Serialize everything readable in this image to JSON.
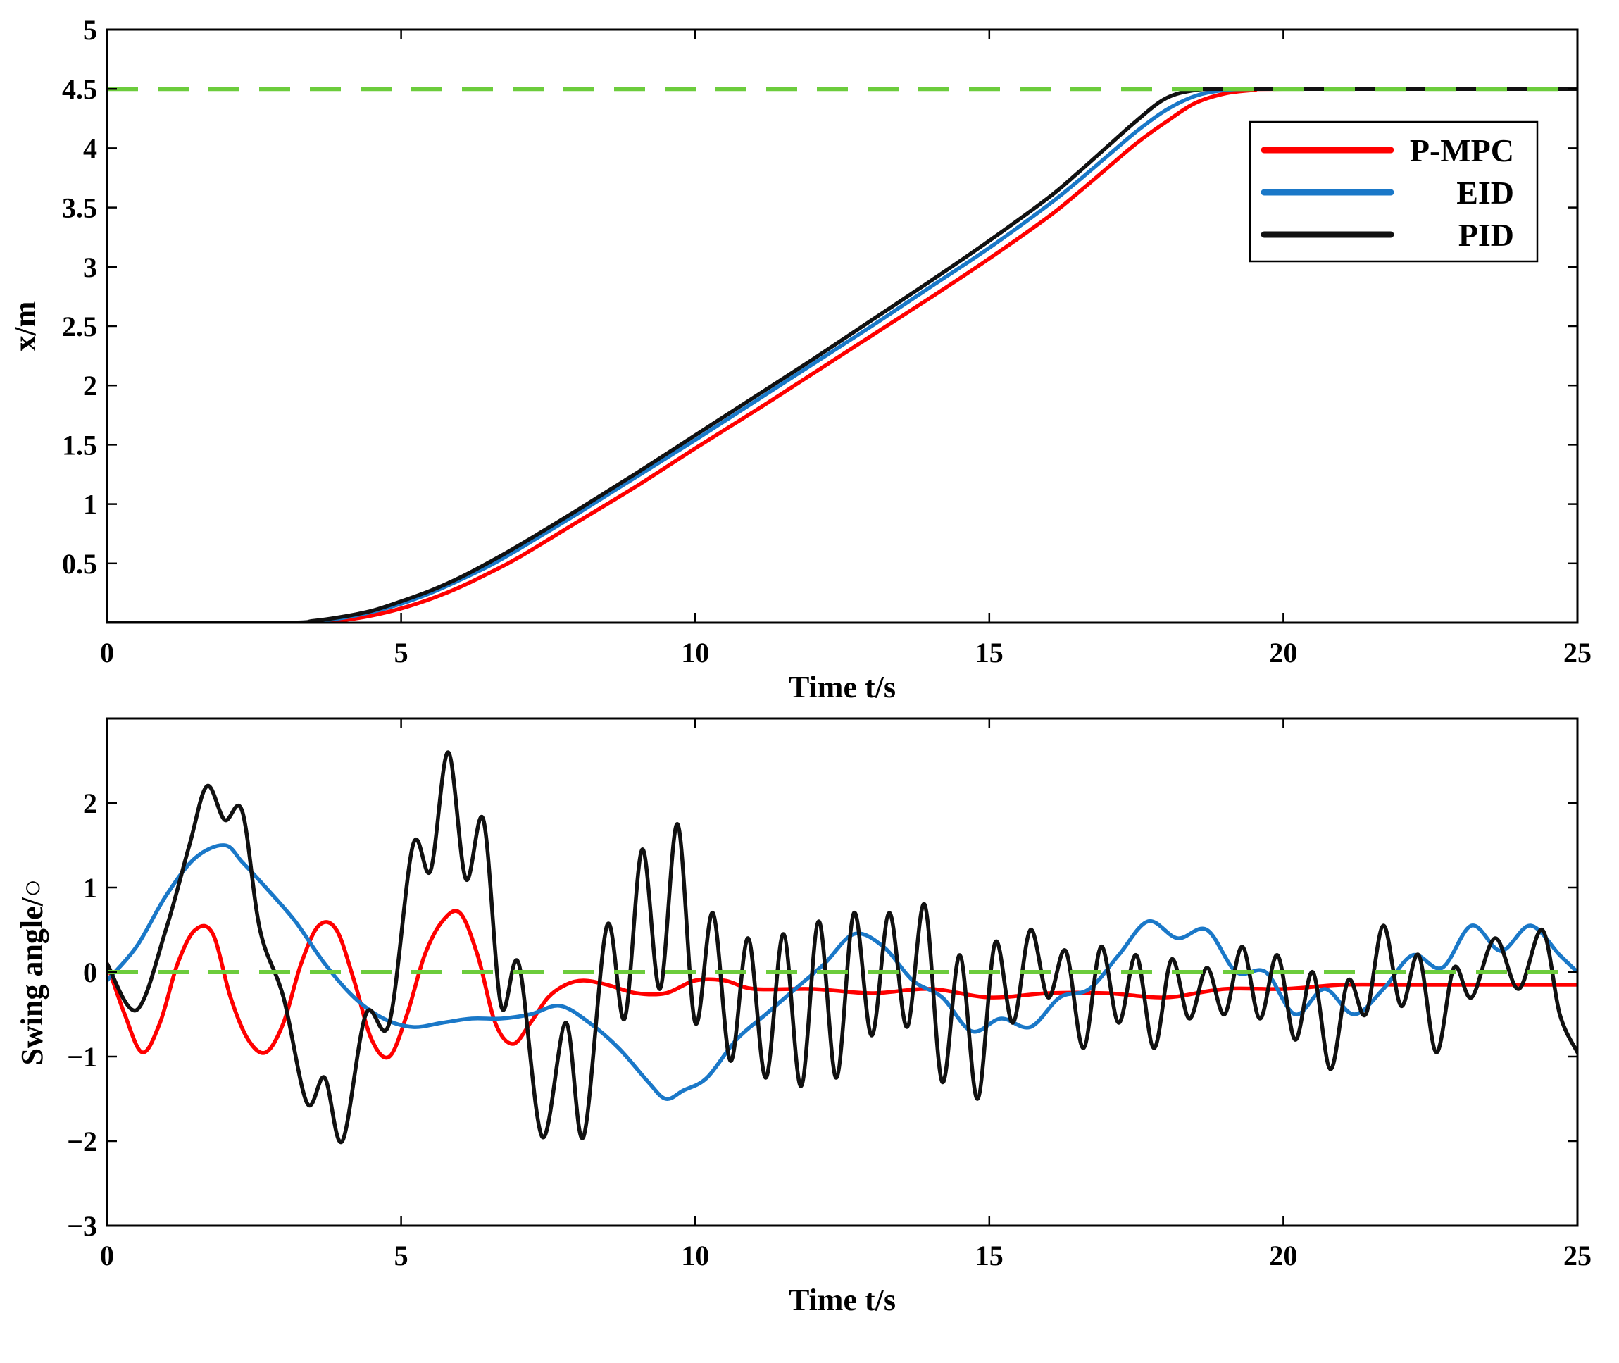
{
  "colors": {
    "pmpc": "#ff0000",
    "eid": "#1a78c8",
    "pid": "#111111",
    "reference": "#6ccc3c",
    "axes": "#000000"
  },
  "chart_data": [
    {
      "type": "line",
      "title": "",
      "xlabel": "Time t/s",
      "ylabel": "x/m",
      "xlim": [
        0,
        25
      ],
      "ylim": [
        0,
        5
      ],
      "xticks": [
        0,
        5,
        10,
        15,
        20,
        25
      ],
      "yticks": [
        0.5,
        1,
        1.5,
        2,
        2.5,
        3,
        3.5,
        4,
        4.5,
        5
      ],
      "ytick_labels": [
        "0.5",
        "1",
        "1.5",
        "2",
        "2.5",
        "3",
        "3.5",
        "4",
        "4.5",
        "5"
      ],
      "legend": {
        "position": "top-right",
        "entries": [
          "P-MPC",
          "EID",
          "PID"
        ]
      },
      "series": [
        {
          "name": "P-MPC",
          "color_key": "pmpc",
          "x": [
            0,
            3,
            3.5,
            4,
            4.5,
            5,
            5.5,
            6,
            6.5,
            7,
            8,
            9,
            10,
            11,
            12,
            13,
            14,
            15,
            16,
            16.5,
            17,
            17.5,
            18,
            18.5,
            19,
            19.5,
            20,
            25
          ],
          "y": [
            0,
            0,
            0.005,
            0.02,
            0.06,
            0.12,
            0.2,
            0.3,
            0.42,
            0.55,
            0.85,
            1.15,
            1.47,
            1.78,
            2.1,
            2.42,
            2.74,
            3.07,
            3.42,
            3.62,
            3.83,
            4.04,
            4.22,
            4.38,
            4.46,
            4.49,
            4.5,
            4.5
          ]
        },
        {
          "name": "EID",
          "color_key": "eid",
          "x": [
            0,
            3,
            3.5,
            4,
            4.5,
            5,
            5.5,
            6,
            6.5,
            7,
            8,
            9,
            10,
            11,
            12,
            13,
            14,
            15,
            16,
            16.5,
            17,
            17.5,
            18,
            18.5,
            19,
            19.5,
            20,
            25
          ],
          "y": [
            0,
            0,
            0.01,
            0.04,
            0.09,
            0.16,
            0.25,
            0.36,
            0.48,
            0.62,
            0.92,
            1.23,
            1.54,
            1.86,
            2.18,
            2.5,
            2.83,
            3.16,
            3.52,
            3.72,
            3.93,
            4.14,
            4.32,
            4.44,
            4.49,
            4.5,
            4.5,
            4.5
          ]
        },
        {
          "name": "PID",
          "color_key": "pid",
          "x": [
            0,
            3,
            3.5,
            4,
            4.5,
            5,
            5.5,
            6,
            6.5,
            7,
            8,
            9,
            10,
            11,
            12,
            13,
            14,
            15,
            16,
            16.5,
            17,
            17.5,
            18,
            18.5,
            19,
            19.5,
            20,
            25
          ],
          "y": [
            0,
            0,
            0.015,
            0.05,
            0.1,
            0.18,
            0.27,
            0.38,
            0.51,
            0.65,
            0.95,
            1.26,
            1.58,
            1.9,
            2.22,
            2.55,
            2.88,
            3.22,
            3.58,
            3.79,
            4.01,
            4.23,
            4.42,
            4.49,
            4.5,
            4.5,
            4.5,
            4.5
          ]
        },
        {
          "name": "Reference",
          "color_key": "reference",
          "dashed": true,
          "x": [
            0,
            25
          ],
          "y": [
            4.5,
            4.5
          ]
        }
      ]
    },
    {
      "type": "line",
      "title": "",
      "xlabel": "Time t/s",
      "ylabel": "Swing angle/○",
      "xlim": [
        0,
        25
      ],
      "ylim": [
        -3,
        3
      ],
      "xticks": [
        0,
        5,
        10,
        15,
        20,
        25
      ],
      "yticks": [
        -3,
        -2,
        -1,
        0,
        1,
        2
      ],
      "ytick_labels": [
        "−3",
        "−2",
        "−1",
        "0",
        "1",
        "2"
      ],
      "series": [
        {
          "name": "P-MPC",
          "color_key": "pmpc",
          "x": [
            0,
            0.3,
            0.6,
            0.9,
            1.2,
            1.5,
            1.8,
            2.1,
            2.4,
            2.7,
            3.0,
            3.3,
            3.6,
            3.9,
            4.2,
            4.5,
            4.8,
            5.1,
            5.4,
            5.7,
            6.0,
            6.3,
            6.6,
            6.9,
            7.2,
            7.5,
            7.8,
            8.1,
            8.5,
            9.0,
            9.5,
            10.0,
            10.5,
            11,
            12,
            13,
            14,
            15,
            16,
            17,
            18,
            19,
            20,
            21,
            22,
            23,
            24,
            25
          ],
          "y": [
            0.1,
            -0.5,
            -0.95,
            -0.6,
            0.1,
            0.5,
            0.45,
            -0.3,
            -0.8,
            -0.95,
            -0.6,
            0.1,
            0.55,
            0.5,
            -0.1,
            -0.8,
            -1.0,
            -0.5,
            0.2,
            0.6,
            0.7,
            0.2,
            -0.6,
            -0.85,
            -0.6,
            -0.3,
            -0.15,
            -0.1,
            -0.15,
            -0.25,
            -0.25,
            -0.1,
            -0.1,
            -0.2,
            -0.2,
            -0.25,
            -0.2,
            -0.3,
            -0.25,
            -0.25,
            -0.3,
            -0.2,
            -0.2,
            -0.15,
            -0.15,
            -0.15,
            -0.15,
            -0.15
          ]
        },
        {
          "name": "EID",
          "color_key": "eid",
          "x": [
            0,
            0.5,
            1.0,
            1.5,
            2.0,
            2.3,
            2.7,
            3.2,
            3.7,
            4.2,
            4.7,
            5.2,
            5.7,
            6.2,
            6.7,
            7.2,
            7.7,
            8.2,
            8.7,
            9.2,
            9.5,
            9.8,
            10.2,
            10.7,
            11.2,
            11.7,
            12.2,
            12.7,
            13.2,
            13.7,
            14.2,
            14.7,
            15.2,
            15.7,
            16.2,
            16.7,
            17.2,
            17.7,
            18.2,
            18.7,
            19.2,
            19.7,
            20.2,
            20.7,
            21.2,
            21.7,
            22.2,
            22.7,
            23.2,
            23.7,
            24.2,
            24.7,
            25
          ],
          "y": [
            -0.1,
            0.3,
            0.9,
            1.35,
            1.5,
            1.3,
            1.0,
            0.6,
            0.1,
            -0.3,
            -0.55,
            -0.65,
            -0.6,
            -0.55,
            -0.55,
            -0.5,
            -0.4,
            -0.6,
            -0.9,
            -1.3,
            -1.5,
            -1.4,
            -1.25,
            -0.8,
            -0.5,
            -0.2,
            0.1,
            0.45,
            0.3,
            -0.1,
            -0.3,
            -0.7,
            -0.55,
            -0.65,
            -0.3,
            -0.2,
            0.2,
            0.6,
            0.4,
            0.5,
            0.0,
            0.0,
            -0.5,
            -0.2,
            -0.5,
            -0.2,
            0.2,
            0.05,
            0.55,
            0.25,
            0.55,
            0.2,
            0.0
          ]
        },
        {
          "name": "PID",
          "color_key": "pid",
          "x": [
            0,
            0.5,
            1.0,
            1.4,
            1.7,
            2.0,
            2.3,
            2.6,
            3.0,
            3.4,
            3.7,
            4.0,
            4.4,
            4.8,
            5.2,
            5.5,
            5.8,
            6.1,
            6.4,
            6.7,
            7.0,
            7.4,
            7.8,
            8.1,
            8.5,
            8.8,
            9.1,
            9.4,
            9.7,
            10.0,
            10.3,
            10.6,
            10.9,
            11.2,
            11.5,
            11.8,
            12.1,
            12.4,
            12.7,
            13.0,
            13.3,
            13.6,
            13.9,
            14.2,
            14.5,
            14.8,
            15.1,
            15.4,
            15.7,
            16.0,
            16.3,
            16.6,
            16.9,
            17.2,
            17.5,
            17.8,
            18.1,
            18.4,
            18.7,
            19.0,
            19.3,
            19.6,
            19.9,
            20.2,
            20.5,
            20.8,
            21.1,
            21.4,
            21.7,
            22.0,
            22.3,
            22.6,
            22.9,
            23.2,
            23.6,
            24.0,
            24.4,
            24.7,
            25
          ],
          "y": [
            0.1,
            -0.45,
            0.5,
            1.5,
            2.2,
            1.8,
            1.9,
            0.5,
            -0.3,
            -1.55,
            -1.25,
            -2.0,
            -0.5,
            -0.6,
            1.5,
            1.2,
            2.6,
            1.1,
            1.8,
            -0.4,
            0.1,
            -1.95,
            -0.6,
            -1.95,
            0.55,
            -0.55,
            1.45,
            -0.2,
            1.75,
            -0.6,
            0.7,
            -1.05,
            0.4,
            -1.25,
            0.45,
            -1.35,
            0.6,
            -1.25,
            0.7,
            -0.75,
            0.7,
            -0.65,
            0.8,
            -1.3,
            0.2,
            -1.5,
            0.35,
            -0.6,
            0.5,
            -0.3,
            0.25,
            -0.9,
            0.3,
            -0.6,
            0.2,
            -0.9,
            0.15,
            -0.55,
            0.05,
            -0.5,
            0.3,
            -0.55,
            0.2,
            -0.8,
            0.0,
            -1.15,
            -0.1,
            -0.5,
            0.55,
            -0.4,
            0.2,
            -0.95,
            0.05,
            -0.3,
            0.4,
            -0.2,
            0.5,
            -0.5,
            -0.95
          ]
        },
        {
          "name": "Reference",
          "color_key": "reference",
          "dashed": true,
          "x": [
            0,
            25
          ],
          "y": [
            0,
            0
          ]
        }
      ]
    }
  ]
}
